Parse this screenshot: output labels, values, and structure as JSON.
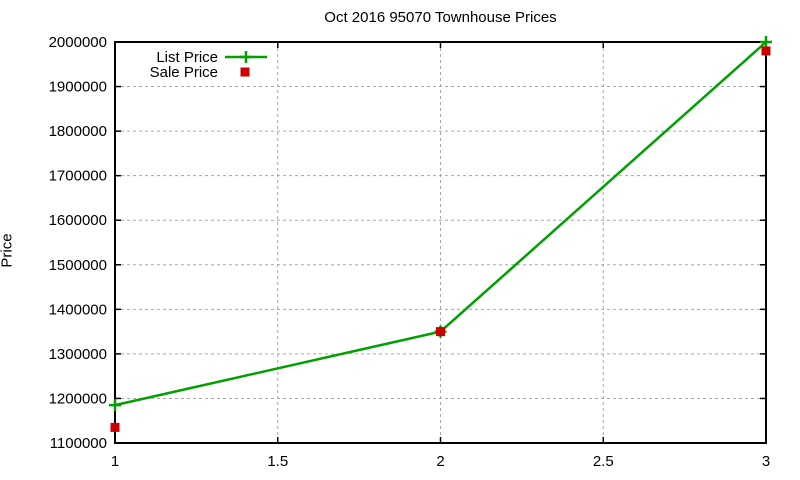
{
  "chart_data": {
    "type": "line",
    "title": "Oct 2016 95070 Townhouse Prices",
    "xlabel": "",
    "ylabel": "Price",
    "x": [
      1,
      2,
      3
    ],
    "series": [
      {
        "name": "List Price",
        "style": "linespoints",
        "marker": "plus",
        "color": "#00a000",
        "values": [
          1185000,
          1350000,
          2000000
        ]
      },
      {
        "name": "Sale Price",
        "style": "points",
        "marker": "square",
        "color": "#cc0000",
        "values": [
          1135000,
          1350000,
          1980000
        ]
      }
    ],
    "xlim": [
      1,
      3
    ],
    "ylim": [
      1100000,
      2000000
    ],
    "xticks": [
      1,
      1.5,
      2,
      2.5,
      3
    ],
    "xtick_labels": [
      "1",
      "1.5",
      "2",
      "2.5",
      "3"
    ],
    "yticks": [
      1100000,
      1200000,
      1300000,
      1400000,
      1500000,
      1600000,
      1700000,
      1800000,
      1900000,
      2000000
    ],
    "ytick_labels": [
      "1100000",
      "1200000",
      "1300000",
      "1400000",
      "1500000",
      "1600000",
      "1700000",
      "1800000",
      "1900000",
      "2000000"
    ],
    "grid": true,
    "legend_position": "top-left",
    "colors": {
      "background": "#ffffff",
      "border": "#000000",
      "grid": "#a6a6a6",
      "text": "#000000",
      "list_price": "#00a000",
      "sale_price": "#cc0000"
    }
  }
}
